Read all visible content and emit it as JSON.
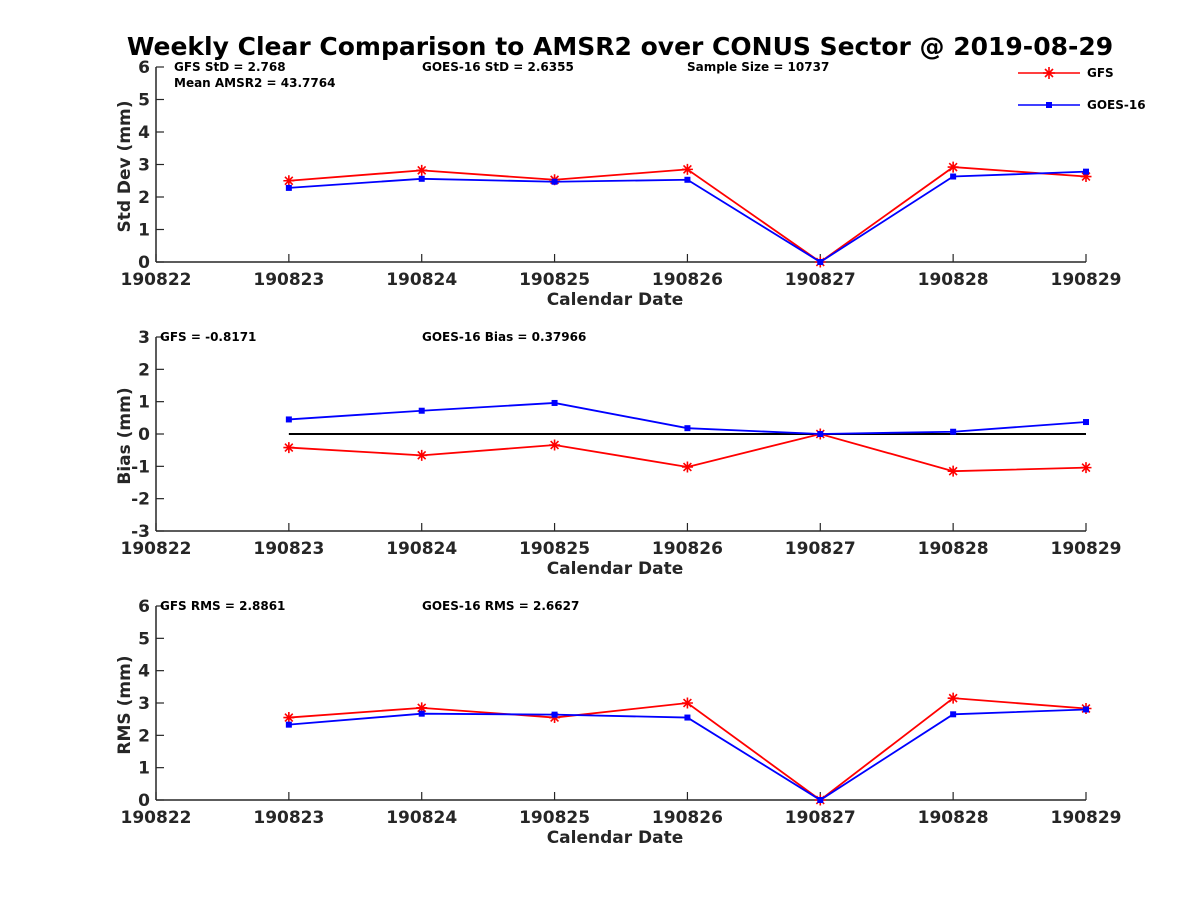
{
  "title": "Weekly Clear Comparison to AMSR2 over CONUS Sector @ 2019-08-29",
  "legend": {
    "position": "top-right",
    "entries": [
      {
        "name": "GFS",
        "color": "#ff0000",
        "marker": "asterisk"
      },
      {
        "name": "GOES-16",
        "color": "#0000ff",
        "marker": "square"
      }
    ]
  },
  "chart_data": [
    {
      "type": "line",
      "xlabel": "Calendar Date",
      "ylabel": "Std Dev (mm)",
      "categories": [
        "190822",
        "190823",
        "190824",
        "190825",
        "190826",
        "190827",
        "190828",
        "190829"
      ],
      "ylim": [
        0,
        6
      ],
      "yticks": [
        "0",
        "1",
        "2",
        "3",
        "4",
        "5",
        "6"
      ],
      "grid": false,
      "annotations": [
        "GFS StD = 2.768",
        "Mean AMSR2 = 43.7764",
        "GOES-16 StD = 2.6355",
        "Sample Size = 10737"
      ],
      "series": [
        {
          "name": "GFS",
          "color": "#ff0000",
          "marker": "asterisk",
          "x": [
            "190823",
            "190824",
            "190825",
            "190826",
            "190827",
            "190828",
            "190829"
          ],
          "values": [
            2.5,
            2.82,
            2.53,
            2.85,
            0.0,
            2.92,
            2.63
          ]
        },
        {
          "name": "GOES-16",
          "color": "#0000ff",
          "marker": "square",
          "x": [
            "190823",
            "190824",
            "190825",
            "190826",
            "190827",
            "190828",
            "190829"
          ],
          "values": [
            2.28,
            2.56,
            2.47,
            2.53,
            0.0,
            2.63,
            2.78
          ]
        }
      ]
    },
    {
      "type": "line",
      "xlabel": "Calendar Date",
      "ylabel": "Bias (mm)",
      "categories": [
        "190822",
        "190823",
        "190824",
        "190825",
        "190826",
        "190827",
        "190828",
        "190829"
      ],
      "ylim": [
        -3,
        3
      ],
      "yticks": [
        "-3",
        "-2",
        "-1",
        "0",
        "1",
        "2",
        "3"
      ],
      "grid": false,
      "zero_line": true,
      "annotations": [
        "GFS = -0.8171",
        "GOES-16 Bias  = 0.37966"
      ],
      "series": [
        {
          "name": "GFS",
          "color": "#ff0000",
          "marker": "asterisk",
          "x": [
            "190823",
            "190824",
            "190825",
            "190826",
            "190827",
            "190828",
            "190829"
          ],
          "values": [
            -0.42,
            -0.66,
            -0.34,
            -1.02,
            0.0,
            -1.15,
            -1.04
          ]
        },
        {
          "name": "GOES-16",
          "color": "#0000ff",
          "marker": "square",
          "x": [
            "190823",
            "190824",
            "190825",
            "190826",
            "190827",
            "190828",
            "190829"
          ],
          "values": [
            0.45,
            0.72,
            0.96,
            0.18,
            0.0,
            0.07,
            0.37
          ]
        }
      ]
    },
    {
      "type": "line",
      "xlabel": "Calendar Date",
      "ylabel": "RMS (mm)",
      "categories": [
        "190822",
        "190823",
        "190824",
        "190825",
        "190826",
        "190827",
        "190828",
        "190829"
      ],
      "ylim": [
        0,
        6
      ],
      "yticks": [
        "0",
        "1",
        "2",
        "3",
        "4",
        "5",
        "6"
      ],
      "grid": false,
      "annotations": [
        "GFS RMS = 2.8861",
        "GOES-16 RMS = 2.6627"
      ],
      "series": [
        {
          "name": "GFS",
          "color": "#ff0000",
          "marker": "asterisk",
          "x": [
            "190823",
            "190824",
            "190825",
            "190826",
            "190827",
            "190828",
            "190829"
          ],
          "values": [
            2.55,
            2.85,
            2.55,
            3.0,
            0.0,
            3.15,
            2.83
          ]
        },
        {
          "name": "GOES-16",
          "color": "#0000ff",
          "marker": "square",
          "x": [
            "190823",
            "190824",
            "190825",
            "190826",
            "190827",
            "190828",
            "190829"
          ],
          "values": [
            2.33,
            2.67,
            2.64,
            2.55,
            0.0,
            2.65,
            2.8
          ]
        }
      ]
    }
  ]
}
